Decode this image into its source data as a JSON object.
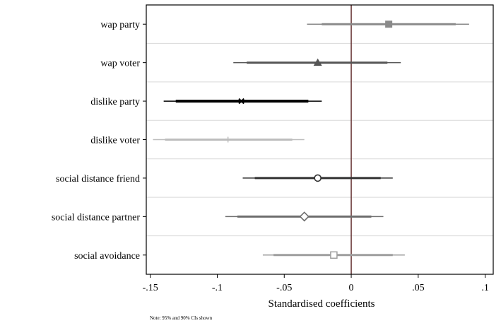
{
  "chart_data": {
    "type": "coefficient-plot",
    "xlabel": "Standardised coefficients",
    "note": "Note: 95% and 90% CIs shown",
    "xlim": [
      -0.153,
      0.106
    ],
    "xticks": [
      {
        "value": -0.15,
        "label": "-.15"
      },
      {
        "value": -0.1,
        "label": "-.1"
      },
      {
        "value": -0.05,
        "label": "-.05"
      },
      {
        "value": 0,
        "label": "0"
      },
      {
        "value": 0.05,
        "label": ".05"
      },
      {
        "value": 0.1,
        "label": ".1"
      }
    ],
    "reference_line": 0,
    "grid": "horizontal",
    "rows": [
      {
        "label": "wap party",
        "estimate": 0.028,
        "ci95": [
          -0.033,
          0.088
        ],
        "ci90": [
          -0.022,
          0.078
        ],
        "marker": "filled-square",
        "color": "#8a8a8a"
      },
      {
        "label": "wap voter",
        "estimate": -0.025,
        "ci95": [
          -0.088,
          0.037
        ],
        "ci90": [
          -0.078,
          0.027
        ],
        "marker": "filled-triangle",
        "color": "#555555"
      },
      {
        "label": "dislike party",
        "estimate": -0.082,
        "ci95": [
          -0.14,
          -0.022
        ],
        "ci90": [
          -0.131,
          -0.032
        ],
        "marker": "x",
        "color": "#000000"
      },
      {
        "label": "dislike voter",
        "estimate": -0.092,
        "ci95": [
          -0.148,
          -0.035
        ],
        "ci90": [
          -0.139,
          -0.044
        ],
        "marker": "plus",
        "color": "#bdbdbd"
      },
      {
        "label": "social distance friend",
        "estimate": -0.025,
        "ci95": [
          -0.081,
          0.031
        ],
        "ci90": [
          -0.072,
          0.022
        ],
        "marker": "hollow-circle",
        "color": "#333333"
      },
      {
        "label": "social distance partner",
        "estimate": -0.035,
        "ci95": [
          -0.094,
          0.024
        ],
        "ci90": [
          -0.085,
          0.015
        ],
        "marker": "hollow-diamond",
        "color": "#6e6e6e"
      },
      {
        "label": "social avoidance",
        "estimate": -0.013,
        "ci95": [
          -0.066,
          0.04
        ],
        "ci90": [
          -0.058,
          0.031
        ],
        "marker": "hollow-square",
        "color": "#9e9e9e"
      }
    ],
    "colors": {
      "reference_line": "#6b3a3a",
      "frame": "#000000",
      "grid": "#d9d9d9"
    }
  }
}
